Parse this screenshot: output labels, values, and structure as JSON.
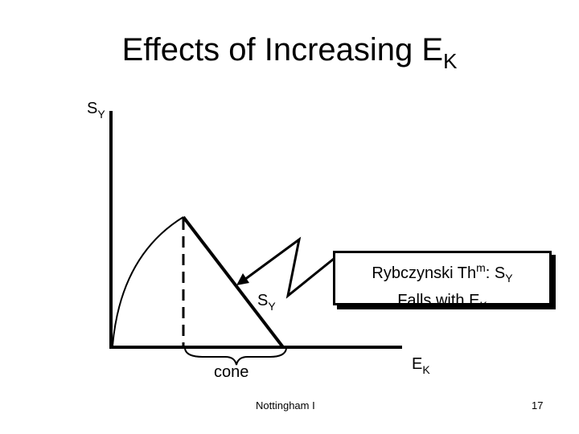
{
  "title": {
    "main": "Effects of Increasing E",
    "sub": "K"
  },
  "axis": {
    "y_label_main": "S",
    "y_label_sub": "Y",
    "x_label_main": "E",
    "x_label_sub": "K"
  },
  "labels": {
    "sy_main": "S",
    "sy_sub": "Y",
    "cone": "cone"
  },
  "callout": {
    "line1_a": "Rybczynski Th",
    "line1_sup": "m",
    "line1_b": ":  S",
    "line1_sub": "Y",
    "line2_a": "Falls with E",
    "line2_sub": "K"
  },
  "footer": {
    "left": "Nottingham I",
    "page": "17"
  }
}
